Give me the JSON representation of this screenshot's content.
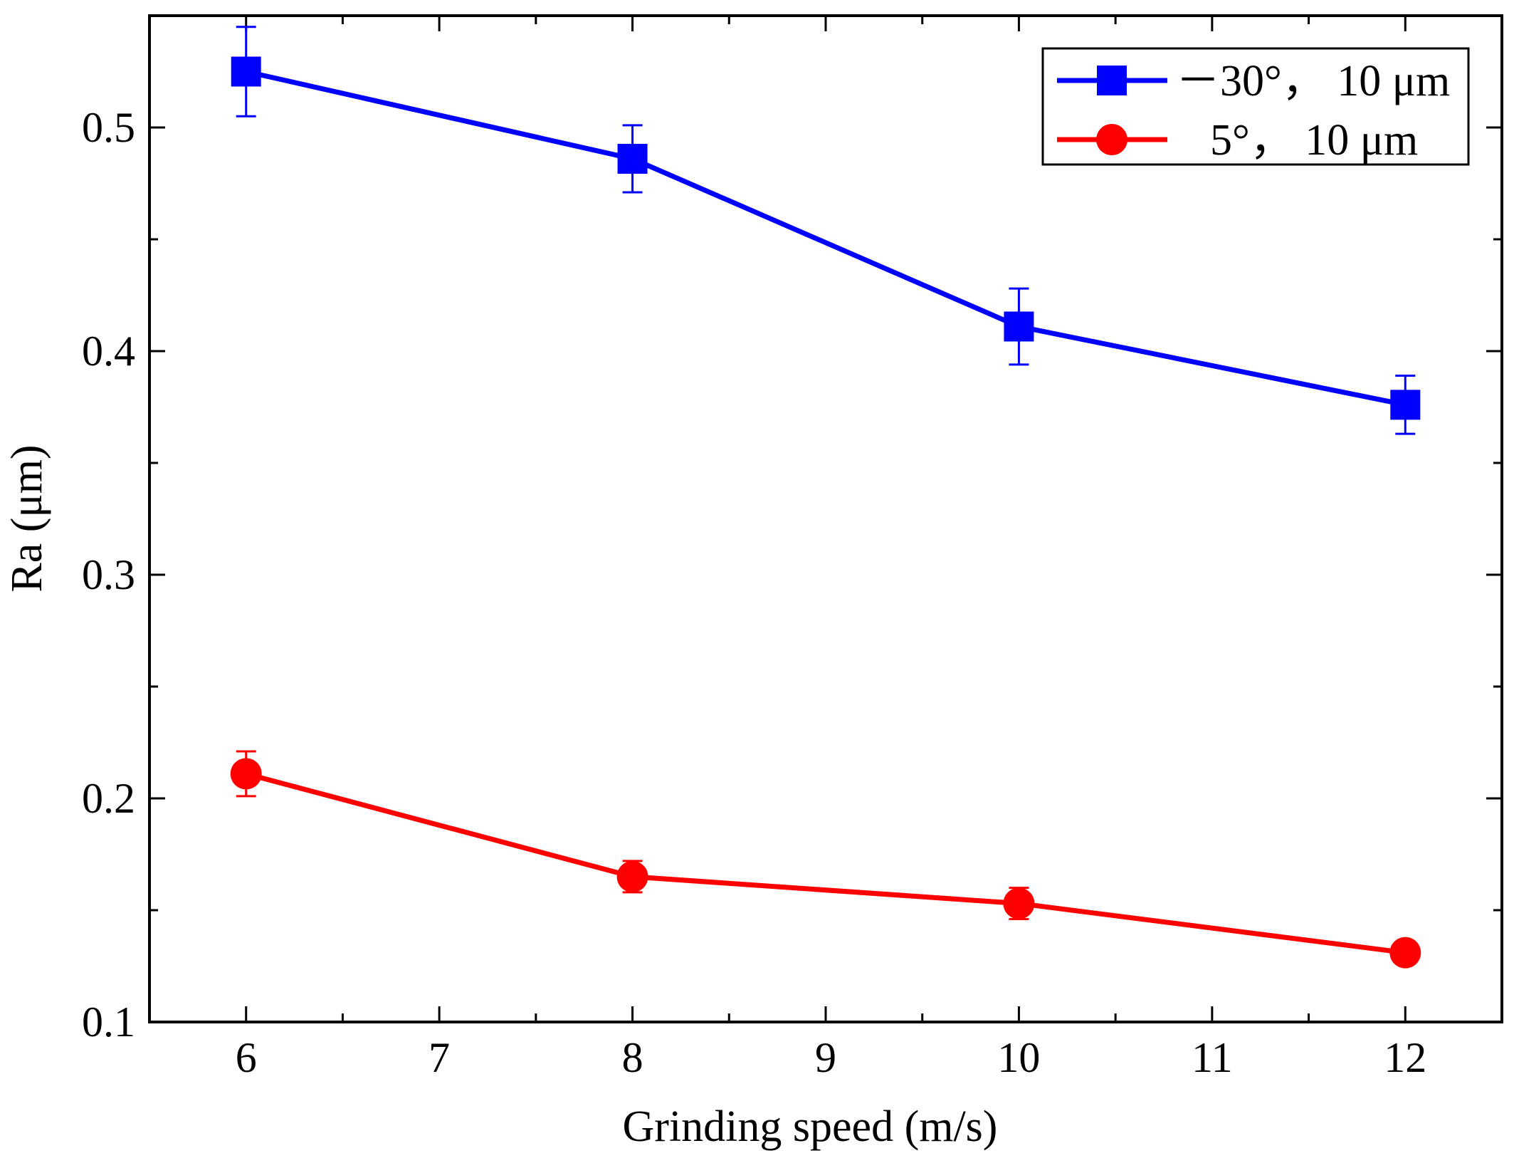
{
  "chart_data": {
    "type": "line",
    "title": "",
    "xlabel": "Grinding speed (m/s)",
    "ylabel": "Ra (μm)",
    "xlim": [
      5.5,
      12.5
    ],
    "ylim": [
      0.1,
      0.55
    ],
    "x_ticks": [
      6,
      7,
      8,
      9,
      10,
      11,
      12
    ],
    "x_tick_labels": [
      "6",
      "7",
      "8",
      "9",
      "10",
      "11",
      "12"
    ],
    "y_ticks": [
      0.1,
      0.2,
      0.3,
      0.4,
      0.5
    ],
    "y_tick_labels": [
      "0.1",
      "0.2",
      "0.3",
      "0.4",
      "0.5"
    ],
    "y_minor_ticks": [
      0.15,
      0.25,
      0.35,
      0.45
    ],
    "grid": false,
    "legend_position": "top-right",
    "series": [
      {
        "name": "－30°， 10 μm",
        "color": "#0000ff",
        "marker": "square",
        "x": [
          6,
          8,
          10,
          12
        ],
        "values": [
          0.525,
          0.486,
          0.411,
          0.376
        ],
        "error": [
          0.02,
          0.015,
          0.017,
          0.013
        ]
      },
      {
        "name": "5°， 10 μm",
        "color": "#ff0000",
        "marker": "circle",
        "x": [
          6,
          8,
          10,
          12
        ],
        "values": [
          0.211,
          0.165,
          0.153,
          0.131
        ],
        "error": [
          0.01,
          0.007,
          0.007,
          0.002
        ]
      }
    ]
  }
}
